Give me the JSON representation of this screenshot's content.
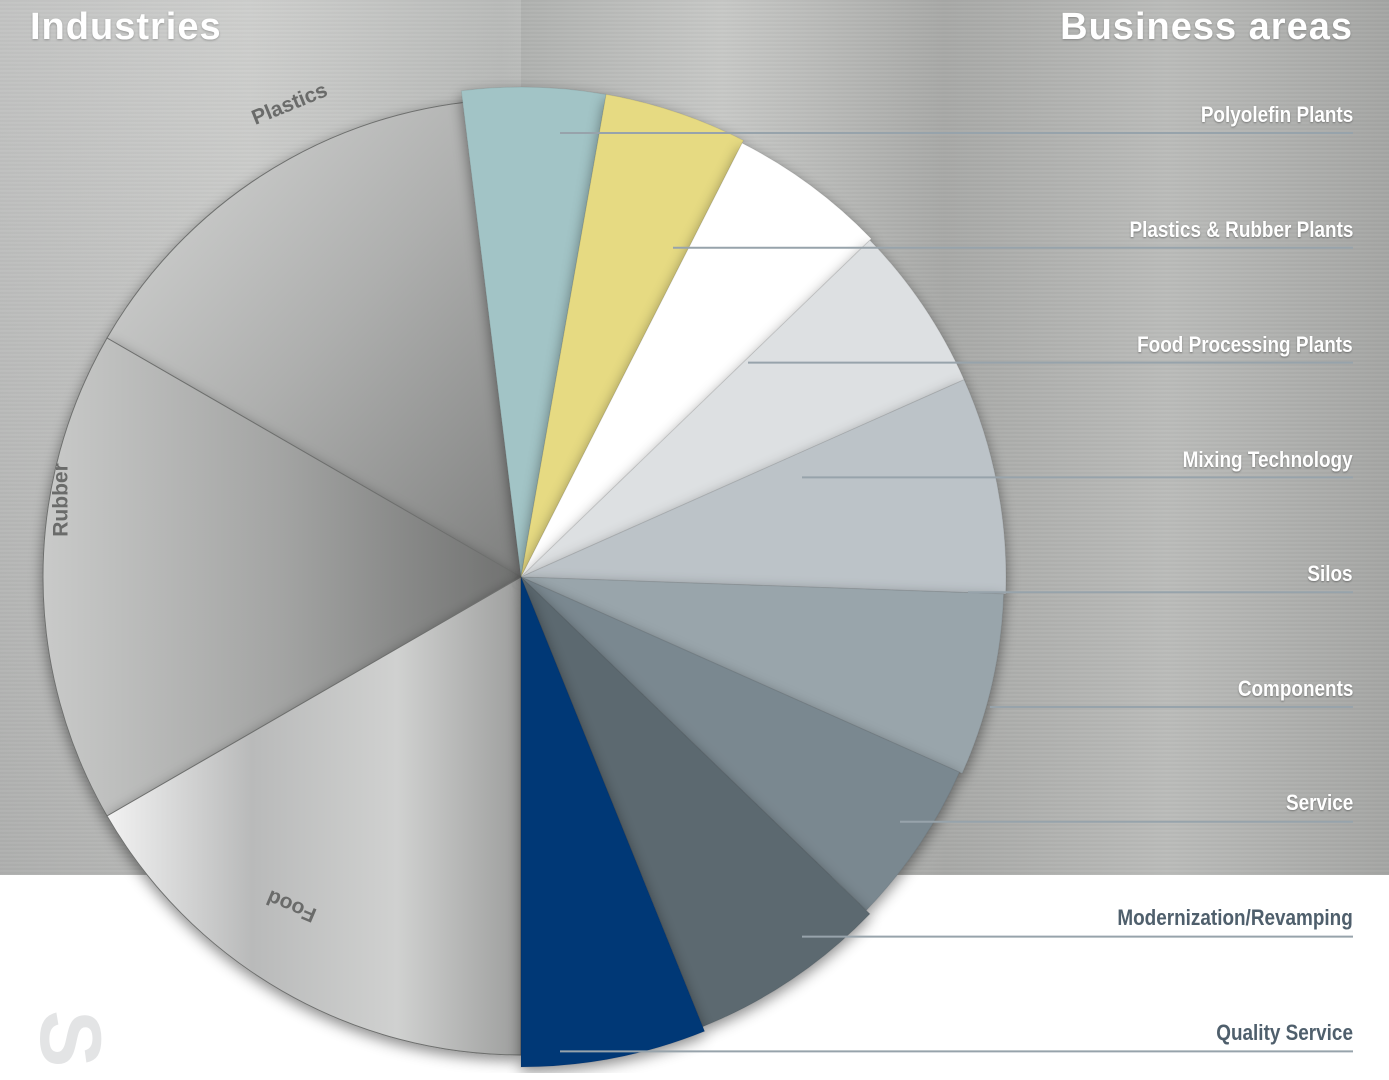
{
  "headers": {
    "industries": "Industries",
    "business_areas": "Business areas"
  },
  "industries": [
    {
      "label": "Plastics"
    },
    {
      "label": "Rubber"
    },
    {
      "label": "Food"
    }
  ],
  "business_areas": [
    {
      "label": "Polyolefin Plants",
      "color": "#a2c4c6"
    },
    {
      "label": "Plastics & Rubber Plants",
      "color": "#e6da82"
    },
    {
      "label": "Food Processing Plants",
      "color": "#ffffff"
    },
    {
      "label": "Mixing Technology",
      "color": "#dde0e2"
    },
    {
      "label": "Silos",
      "color": "#bcc3c8"
    },
    {
      "label": "Components",
      "color": "#99a5ab"
    },
    {
      "label": "Service",
      "color": "#7a8890"
    },
    {
      "label": "Modernization/Revamping",
      "color": "#5c6970"
    },
    {
      "label": "Quality Service",
      "color": "#033776"
    }
  ],
  "logo_glyph": "S",
  "colors": {
    "leader_line": "#97a3ab",
    "dark_label": "#4f5f6c",
    "light_label": "#ffffff"
  }
}
